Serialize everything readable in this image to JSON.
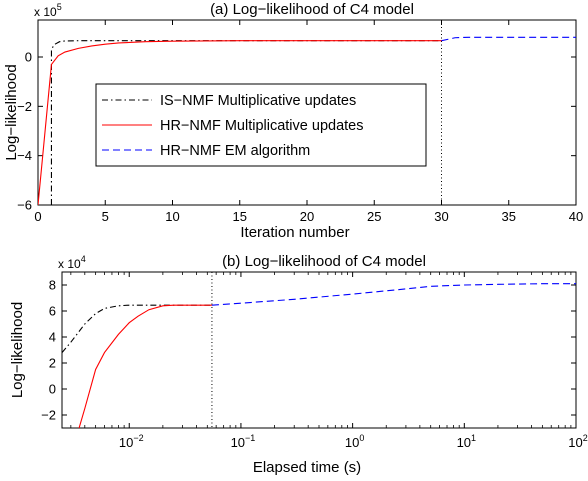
{
  "chart_data": [
    {
      "type": "line",
      "title": "(a) Log−likelihood of C4 model",
      "xlabel": "Iteration number",
      "ylabel": "Log−likelihood",
      "y_multiplier": {
        "base": "x 10",
        "exponent": "5"
      },
      "xlim": [
        0,
        40
      ],
      "ylim": [
        -6,
        1.5
      ],
      "x_scale": "linear",
      "xticks": [
        0,
        5,
        10,
        15,
        20,
        25,
        30,
        35,
        40
      ],
      "xtick_labels": [
        "0",
        "5",
        "10",
        "15",
        "20",
        "25",
        "30",
        "35",
        "40"
      ],
      "yticks": [
        -6,
        -4,
        -2,
        0
      ],
      "ytick_labels": [
        "−6",
        "−4",
        "−2",
        "0"
      ],
      "grid": false,
      "legend_position": "center-left",
      "vline": 30,
      "series": [
        {
          "name": "IS−NMF Multiplicative updates",
          "color": "#000000",
          "dash": "dashdot",
          "x": [
            1,
            1,
            1.2,
            1.6,
            2,
            3,
            4,
            6,
            10,
            20,
            30
          ],
          "y": [
            -6,
            0.3,
            0.5,
            0.62,
            0.65,
            0.66,
            0.66,
            0.66,
            0.66,
            0.66,
            0.66
          ]
        },
        {
          "name": "HR−NMF Multiplicative updates",
          "color": "#ff0000",
          "dash": "solid",
          "x": [
            0,
            1,
            1.5,
            2,
            3,
            4,
            5,
            6,
            8,
            10,
            15,
            20,
            30
          ],
          "y": [
            -6,
            -0.3,
            0.05,
            0.2,
            0.35,
            0.45,
            0.52,
            0.57,
            0.62,
            0.64,
            0.66,
            0.66,
            0.66
          ]
        },
        {
          "name": "HR−NMF EM algorithm",
          "color": "#0000ff",
          "dash": "dashed",
          "x": [
            30,
            30.5,
            31,
            32,
            35,
            40
          ],
          "y": [
            0.66,
            0.72,
            0.78,
            0.8,
            0.8,
            0.8
          ]
        }
      ]
    },
    {
      "type": "line",
      "title": "(b) Log−likelihood of C4 model",
      "xlabel": "Elapsed time (s)",
      "ylabel": "Log−likelihood",
      "y_multiplier": {
        "base": "x 10",
        "exponent": "4"
      },
      "xlim": [
        0.0025,
        100
      ],
      "ylim": [
        -3,
        9
      ],
      "x_scale": "log",
      "xticks": [
        0.01,
        0.1,
        1,
        10,
        100
      ],
      "xtick_labels": [
        {
          "base": "10",
          "exp": "−2"
        },
        {
          "base": "10",
          "exp": "−1"
        },
        {
          "base": "10",
          "exp": "0"
        },
        {
          "base": "10",
          "exp": "1"
        },
        {
          "base": "10",
          "exp": "2"
        }
      ],
      "yticks": [
        -2,
        0,
        2,
        4,
        6,
        8
      ],
      "ytick_labels": [
        "−2",
        "0",
        "2",
        "4",
        "6",
        "8"
      ],
      "grid": false,
      "vline": 0.055,
      "series": [
        {
          "name": "IS−NMF Multiplicative updates",
          "color": "#000000",
          "dash": "dashdot",
          "x": [
            0.0025,
            0.003,
            0.004,
            0.005,
            0.006,
            0.008,
            0.01,
            0.015,
            0.02,
            0.03,
            0.04,
            0.055
          ],
          "y": [
            2.8,
            3.6,
            5.0,
            5.8,
            6.2,
            6.4,
            6.45,
            6.45,
            6.45,
            6.45,
            6.45,
            6.45
          ]
        },
        {
          "name": "HR−NMF Multiplicative updates",
          "color": "#ff0000",
          "dash": "solid",
          "x": [
            0.0035,
            0.004,
            0.005,
            0.006,
            0.008,
            0.01,
            0.012,
            0.015,
            0.02,
            0.025,
            0.03,
            0.04,
            0.055
          ],
          "y": [
            -3.2,
            -1.5,
            1.5,
            2.8,
            4.2,
            5.1,
            5.6,
            6.1,
            6.4,
            6.45,
            6.45,
            6.45,
            6.45
          ]
        },
        {
          "name": "HR−NMF EM algorithm",
          "color": "#0000ff",
          "dash": "dashed",
          "x": [
            0.055,
            0.1,
            0.3,
            1,
            3,
            5,
            10,
            20,
            50,
            100
          ],
          "y": [
            6.45,
            6.6,
            6.9,
            7.3,
            7.7,
            7.9,
            8.0,
            8.05,
            8.1,
            8.1
          ]
        }
      ]
    }
  ]
}
